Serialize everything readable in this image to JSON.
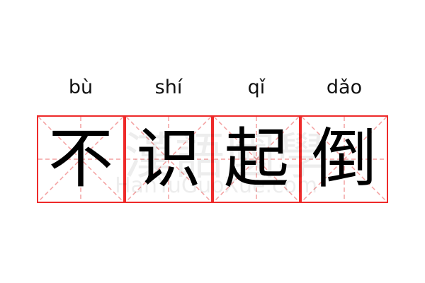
{
  "entries": [
    {
      "pinyin": "bù",
      "char": "不"
    },
    {
      "pinyin": "shí",
      "char": "识"
    },
    {
      "pinyin": "qǐ",
      "char": "起"
    },
    {
      "pinyin": "dǎo",
      "char": "倒"
    }
  ],
  "watermark": {
    "cn": "漢語國學",
    "en": "HanYuGuoXue.com"
  },
  "colors": {
    "grid_border": "#ee2a2a",
    "guide_lines": "#f4a0a0",
    "text": "#000000"
  }
}
